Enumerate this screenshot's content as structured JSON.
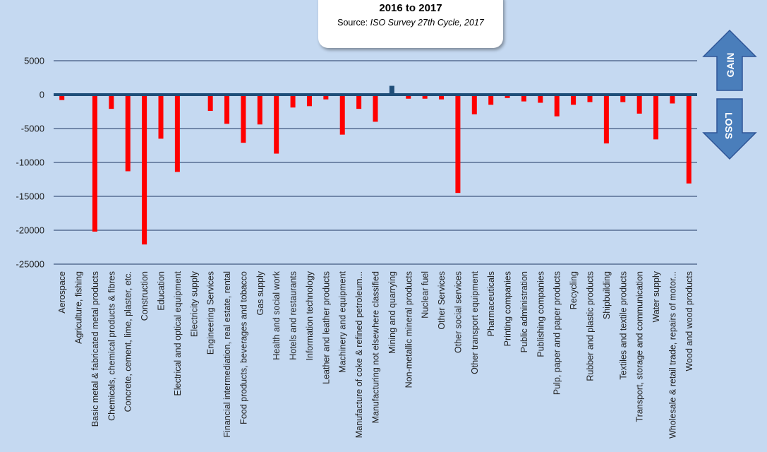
{
  "title": "2016 to 2017",
  "source_prefix": "Source: ",
  "source_name": "ISO Survey 27th Cycle, 2017",
  "gain_label": "GAIN",
  "loss_label": "LOSS",
  "colors": {
    "background": "#c5d9f1",
    "loss_bar": "#ff0000",
    "gain_bar": "#1f4e79",
    "zero_line": "#1f4e79",
    "gridline": "#1f3864",
    "arrow": "#4a7ebb",
    "arrow_text": "#ffffff"
  },
  "chart_data": {
    "type": "bar",
    "ylim": [
      -25000,
      5000
    ],
    "yticks": [
      5000,
      0,
      -5000,
      -10000,
      -15000,
      -20000,
      -25000
    ],
    "grid": true,
    "categories": [
      "Aerospace",
      "Agriculture, fishing",
      "Basic metal & fabricated metal products",
      "Chemicals, chemical products & fibres",
      "Concrete, cement, lime, plaster, etc.",
      "Construction",
      "Education",
      "Electrical and optical equipment",
      "Electricity supply",
      "Engineering Services",
      "Financial intermediation, real estate, rental",
      "Food products, beverages and tobacco",
      "Gas supply",
      "Health and social work",
      "Hotels and restaurants",
      "Information technology",
      "Leather and leather products",
      "Machinery and equipment",
      "Manufacture of coke & refined petroleum...",
      "Manufacturing not elsewhere classified",
      "Mining and quarrying",
      "Non-metallic mineral products",
      "Nuclear fuel",
      "Other Services",
      "Other social services",
      "Other transport equipment",
      "Pharmaceuticals",
      "Printing companies",
      "Public administration",
      "Publishing companies",
      "Pulp, paper and paper products",
      "Recycling",
      "Rubber and plastic products",
      "Shipbuilding",
      "Textiles and textile products",
      "Transport, storage and communication",
      "Water supply",
      "Wholesale & retail trade, repairs of motor...",
      "Wood and wood products"
    ],
    "values": [
      -800,
      -100,
      -20200,
      -2100,
      -11300,
      -22100,
      -6500,
      -11400,
      -100,
      -2400,
      -4300,
      -7100,
      -4400,
      -8700,
      -1900,
      -1700,
      -700,
      -5900,
      -2100,
      -4000,
      1300,
      -600,
      -600,
      -700,
      -14500,
      -2900,
      -1500,
      -500,
      -1000,
      -1200,
      -3200,
      -1500,
      -1100,
      -7200,
      -1100,
      -2800,
      -6600,
      -1300,
      -13100
    ]
  }
}
